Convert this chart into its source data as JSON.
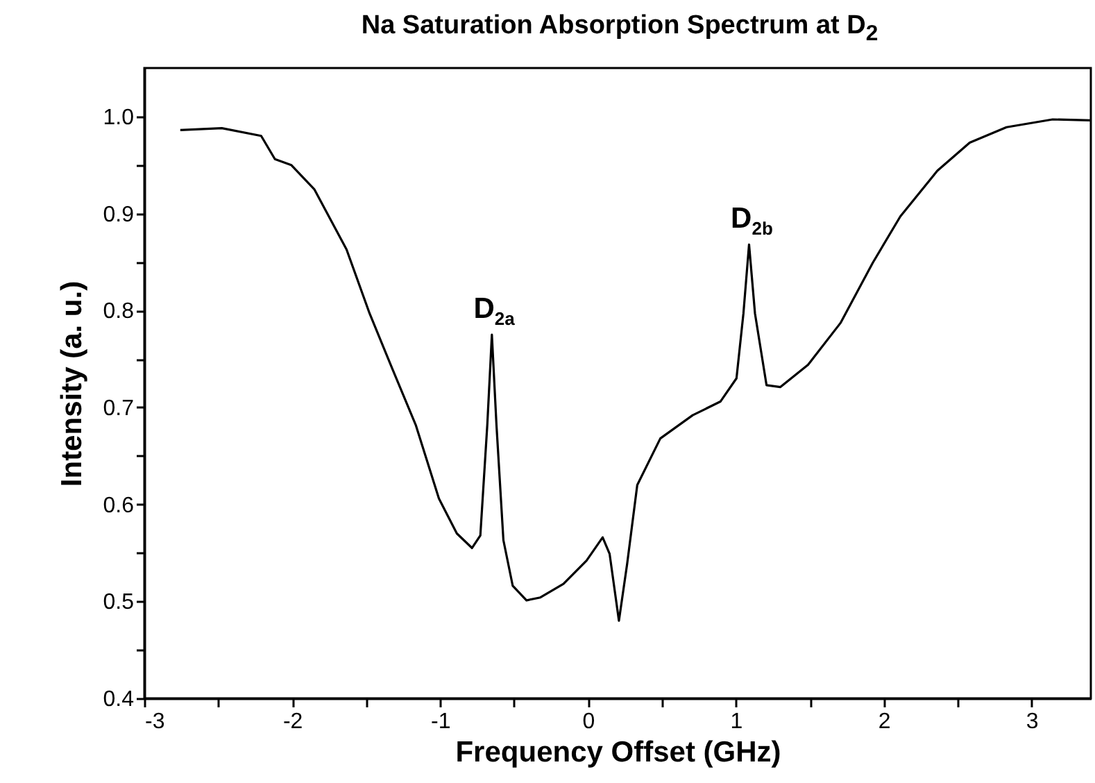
{
  "chart_data": {
    "type": "line",
    "title": "Na Saturation Absorption Spectrum at D$_{2}$",
    "xlabel": "Frequency Offset (GHz)",
    "ylabel": "Intensity (a. u.)",
    "xlim": [
      -3,
      3.4
    ],
    "ylim": [
      0.4,
      1.05
    ],
    "xticks": [
      -3,
      {
        "value": -2.5,
        "label": null
      },
      -2,
      {
        "value": -1.5,
        "label": null
      },
      -1,
      {
        "value": -0.5,
        "label": null
      },
      0,
      {
        "value": 0.5,
        "label": null
      },
      1,
      {
        "value": 1.5,
        "label": null
      },
      2,
      {
        "value": 2.5,
        "label": null
      },
      3
    ],
    "yticks": [
      0.4,
      {
        "value": 0.45,
        "label": null
      },
      0.5,
      {
        "value": 0.55,
        "label": null
      },
      0.6,
      {
        "value": 0.65,
        "label": null
      },
      0.7,
      {
        "value": 0.75,
        "label": null
      },
      0.8,
      {
        "value": 0.85,
        "label": null
      },
      0.9,
      {
        "value": 0.95,
        "label": null
      },
      {
        "value": 1,
        "label": "1.0"
      }
    ],
    "grid": false,
    "marker": "none",
    "line_style": "solid",
    "series": [
      {
        "color": "#000000",
        "x": [
          -2.757,
          -2.476,
          -2.21,
          -2.117,
          -2.007,
          -1.851,
          -1.633,
          -1.477,
          -1.321,
          -1.165,
          -1.008,
          -0.887,
          -0.784,
          -0.728,
          -0.681,
          -0.65,
          -0.619,
          -0.572,
          -0.509,
          -0.416,
          -0.322,
          -0.166,
          -0.01,
          0.099,
          0.146,
          0.209,
          0.265,
          0.333,
          0.489,
          0.708,
          0.895,
          1.004,
          1.051,
          1.089,
          1.129,
          1.207,
          1.301,
          1.488,
          1.707,
          1.925,
          2.112,
          2.362,
          2.581,
          2.83,
          3.142,
          3.4
        ],
        "values": [
          0.986,
          0.988,
          0.98,
          0.956,
          0.95,
          0.925,
          0.863,
          0.797,
          0.739,
          0.682,
          0.606,
          0.57,
          0.555,
          0.568,
          0.682,
          0.775,
          0.682,
          0.563,
          0.516,
          0.501,
          0.504,
          0.518,
          0.542,
          0.566,
          0.549,
          0.48,
          0.539,
          0.62,
          0.668,
          0.692,
          0.706,
          0.73,
          0.797,
          0.868,
          0.797,
          0.723,
          0.721,
          0.744,
          0.787,
          0.849,
          0.897,
          0.944,
          0.973,
          0.989,
          0.997,
          0.996
        ]
      }
    ],
    "annotations": [
      {
        "text": "D$_{2a}$",
        "x": -0.65,
        "y": 0.775
      },
      {
        "text": "D$_{2b}$",
        "x": 1.089,
        "y": 0.868
      }
    ]
  }
}
